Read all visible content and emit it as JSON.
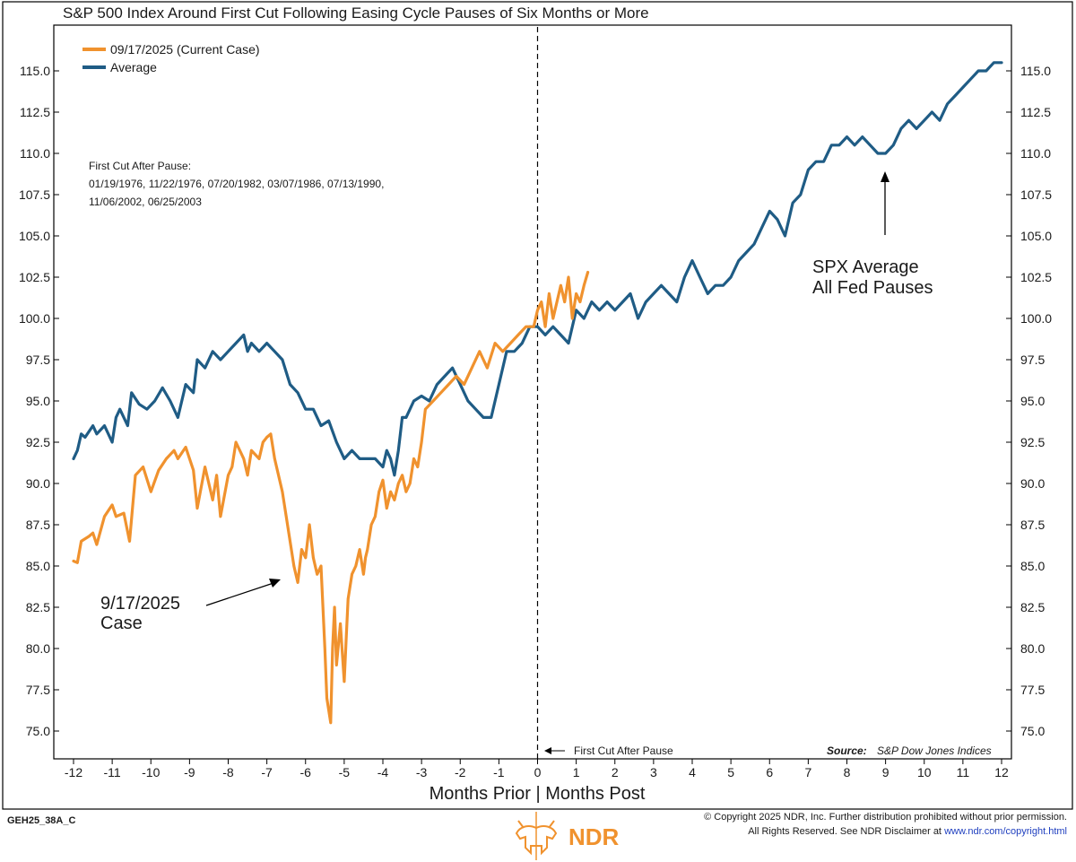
{
  "colors": {
    "current": "#F0922E",
    "average": "#1F5C85",
    "frame": "#000000",
    "brand": "#F0922E",
    "link": "#1F3FBF"
  },
  "legend": {
    "current": "09/17/2025 (Current Case)",
    "average": "Average"
  },
  "notes": {
    "first_cut_title": "First Cut After Pause:",
    "dates_line1": "01/19/1976, 11/22/1976, 07/20/1982, 03/07/1986, 07/13/1990,",
    "dates_line2": "11/06/2002, 06/25/2003"
  },
  "annotations": {
    "case_line1": "9/17/2025",
    "case_line2": "Case",
    "avg_line1": "SPX Average",
    "avg_line2": "All Fed Pauses",
    "first_cut_marker": "First Cut After Pause"
  },
  "source": {
    "label": "Source:",
    "value": "S&P Dow Jones Indices"
  },
  "footer": {
    "code": "GEH25_38A_C",
    "copyright_line1": "© Copyright 2025 NDR, Inc. Further distribution prohibited without prior permission.",
    "copyright_line2_prefix": "All Rights Reserved. See NDR Disclaimer at",
    "copyright_link": "www.ndr.com/copyright.html",
    "brand": "NDR"
  },
  "chart_data": {
    "type": "line",
    "title": "S&P 500 Index Around First Cut Following Easing Cycle Pauses of Six Months or More",
    "xlabel": "Months Prior | Months Post",
    "ylabel": "",
    "xlim": [
      -12,
      12
    ],
    "ylim": [
      73.5,
      117
    ],
    "x_ticks": [
      -12,
      -11,
      -10,
      -9,
      -8,
      -7,
      -6,
      -5,
      -4,
      -3,
      -2,
      -1,
      0,
      1,
      2,
      3,
      4,
      5,
      6,
      7,
      8,
      9,
      10,
      11,
      12
    ],
    "y_ticks": [
      "75.0",
      "77.5",
      "80.0",
      "82.5",
      "85.0",
      "87.5",
      "90.0",
      "92.5",
      "95.0",
      "97.5",
      "100.0",
      "102.5",
      "105.0",
      "107.5",
      "110.0",
      "112.5",
      "115.0"
    ],
    "vline_x": 0,
    "grid": false,
    "legend_position": "top-left",
    "series": [
      {
        "name": "09/17/2025 (Current Case)",
        "x": [
          -12,
          -11.9,
          -11.8,
          -11.6,
          -11.5,
          -11.4,
          -11.2,
          -11.0,
          -10.9,
          -10.7,
          -10.55,
          -10.4,
          -10.2,
          -10.0,
          -9.8,
          -9.6,
          -9.4,
          -9.3,
          -9.1,
          -9.0,
          -8.9,
          -8.8,
          -8.6,
          -8.4,
          -8.3,
          -8.2,
          -8.0,
          -7.9,
          -7.8,
          -7.6,
          -7.5,
          -7.4,
          -7.2,
          -7.1,
          -7.0,
          -6.9,
          -6.8,
          -6.6,
          -6.5,
          -6.4,
          -6.3,
          -6.2,
          -6.1,
          -6.0,
          -5.9,
          -5.8,
          -5.7,
          -5.6,
          -5.5,
          -5.45,
          -5.35,
          -5.3,
          -5.25,
          -5.2,
          -5.1,
          -5.0,
          -4.95,
          -4.9,
          -4.8,
          -4.7,
          -4.6,
          -4.5,
          -4.45,
          -4.4,
          -4.3,
          -4.2,
          -4.1,
          -4.0,
          -3.9,
          -3.8,
          -3.7,
          -3.6,
          -3.5,
          -3.4,
          -3.3,
          -3.2,
          -3.1,
          -3.0,
          -2.9,
          -2.7,
          -2.5,
          -2.3,
          -2.1,
          -1.9,
          -1.7,
          -1.5,
          -1.3,
          -1.1,
          -0.9,
          -0.7,
          -0.5,
          -0.3,
          -0.1,
          0,
          0.1,
          0.2,
          0.3,
          0.4,
          0.5,
          0.6,
          0.7,
          0.8,
          0.9,
          1.0,
          1.1,
          1.2,
          1.3
        ],
        "values": [
          85.3,
          85.2,
          86.5,
          86.8,
          87.0,
          86.3,
          88.0,
          88.7,
          88.0,
          88.2,
          86.5,
          90.5,
          91.0,
          89.5,
          90.8,
          91.5,
          92.0,
          91.5,
          92.2,
          91.5,
          90.8,
          88.5,
          91.0,
          89.0,
          90.5,
          88.0,
          90.5,
          91.0,
          92.5,
          91.5,
          90.5,
          92.0,
          91.5,
          92.5,
          92.8,
          93.0,
          91.5,
          89.5,
          88.0,
          86.5,
          85.0,
          84.0,
          86.0,
          85.5,
          87.5,
          85.5,
          84.5,
          85.0,
          80.0,
          77.0,
          75.5,
          80.0,
          82.5,
          79.0,
          81.5,
          78.0,
          80.5,
          83.0,
          84.5,
          85.0,
          86.0,
          84.5,
          85.5,
          86.0,
          87.5,
          88.0,
          89.5,
          90.2,
          88.5,
          89.5,
          89.0,
          90.0,
          90.5,
          89.5,
          90.0,
          91.5,
          91.0,
          92.5,
          94.5,
          95.0,
          95.5,
          96.0,
          96.5,
          96.0,
          97.0,
          98.0,
          97.0,
          98.5,
          98.0,
          98.5,
          99.0,
          99.5,
          99.5,
          100.5,
          101.0,
          99.5,
          101.5,
          100.0,
          101.0,
          102.0,
          101.0,
          102.5,
          100.0,
          101.5,
          101.0,
          102.0,
          102.8
        ]
      },
      {
        "name": "Average",
        "x": [
          -12,
          -11.9,
          -11.8,
          -11.7,
          -11.5,
          -11.4,
          -11.2,
          -11.0,
          -10.9,
          -10.8,
          -10.6,
          -10.5,
          -10.3,
          -10.1,
          -9.9,
          -9.7,
          -9.5,
          -9.3,
          -9.1,
          -8.9,
          -8.8,
          -8.6,
          -8.4,
          -8.2,
          -8.0,
          -7.8,
          -7.6,
          -7.5,
          -7.4,
          -7.2,
          -7.0,
          -6.8,
          -6.6,
          -6.4,
          -6.2,
          -6.0,
          -5.8,
          -5.6,
          -5.4,
          -5.2,
          -5.0,
          -4.8,
          -4.6,
          -4.4,
          -4.2,
          -4.0,
          -3.9,
          -3.8,
          -3.7,
          -3.6,
          -3.5,
          -3.4,
          -3.2,
          -3.0,
          -2.8,
          -2.6,
          -2.4,
          -2.2,
          -2.0,
          -1.8,
          -1.6,
          -1.4,
          -1.2,
          -1.0,
          -0.8,
          -0.6,
          -0.4,
          -0.2,
          0,
          0.2,
          0.4,
          0.6,
          0.8,
          1.0,
          1.2,
          1.4,
          1.6,
          1.8,
          2.0,
          2.2,
          2.4,
          2.6,
          2.8,
          3.0,
          3.2,
          3.4,
          3.6,
          3.8,
          4.0,
          4.2,
          4.4,
          4.6,
          4.8,
          5.0,
          5.2,
          5.4,
          5.6,
          5.8,
          6.0,
          6.2,
          6.4,
          6.6,
          6.8,
          7.0,
          7.2,
          7.4,
          7.6,
          7.8,
          8.0,
          8.2,
          8.4,
          8.6,
          8.8,
          9.0,
          9.2,
          9.4,
          9.6,
          9.8,
          10.0,
          10.2,
          10.4,
          10.6,
          10.8,
          11.0,
          11.2,
          11.4,
          11.6,
          11.8,
          12.0
        ],
        "values": [
          91.5,
          92.0,
          93.0,
          92.8,
          93.5,
          93.0,
          93.5,
          92.5,
          94.0,
          94.5,
          93.5,
          95.5,
          94.8,
          94.5,
          95.0,
          95.8,
          95.0,
          94.0,
          96.0,
          95.5,
          97.5,
          97.0,
          98.0,
          97.5,
          98.0,
          98.5,
          99.0,
          98.0,
          98.5,
          98.0,
          98.5,
          98.0,
          97.5,
          96.0,
          95.5,
          94.5,
          94.5,
          93.5,
          93.8,
          92.5,
          91.5,
          92.0,
          91.5,
          91.5,
          91.5,
          91.0,
          92.0,
          91.5,
          90.5,
          92.0,
          94.0,
          94.0,
          95.0,
          95.3,
          95.0,
          96.0,
          96.5,
          97.0,
          96.0,
          95.0,
          94.5,
          94.0,
          94.0,
          96.0,
          98.0,
          98.0,
          98.5,
          99.5,
          99.5,
          99.0,
          99.5,
          99.0,
          98.5,
          100.5,
          100.0,
          101.0,
          100.5,
          101.0,
          100.5,
          101.0,
          101.5,
          100.0,
          101.0,
          101.5,
          102.0,
          101.5,
          101.0,
          102.5,
          103.5,
          102.5,
          101.5,
          102.0,
          102.0,
          102.5,
          103.5,
          104.0,
          104.5,
          105.5,
          106.5,
          106.0,
          105.0,
          107.0,
          107.5,
          109.0,
          109.5,
          109.5,
          110.5,
          110.5,
          111.0,
          110.5,
          111.0,
          110.5,
          110.0,
          110.0,
          110.5,
          111.5,
          112.0,
          111.5,
          112.0,
          112.5,
          112.0,
          113.0,
          113.5,
          114.0,
          114.5,
          115.0,
          115.0,
          115.5,
          115.5
        ]
      }
    ]
  }
}
